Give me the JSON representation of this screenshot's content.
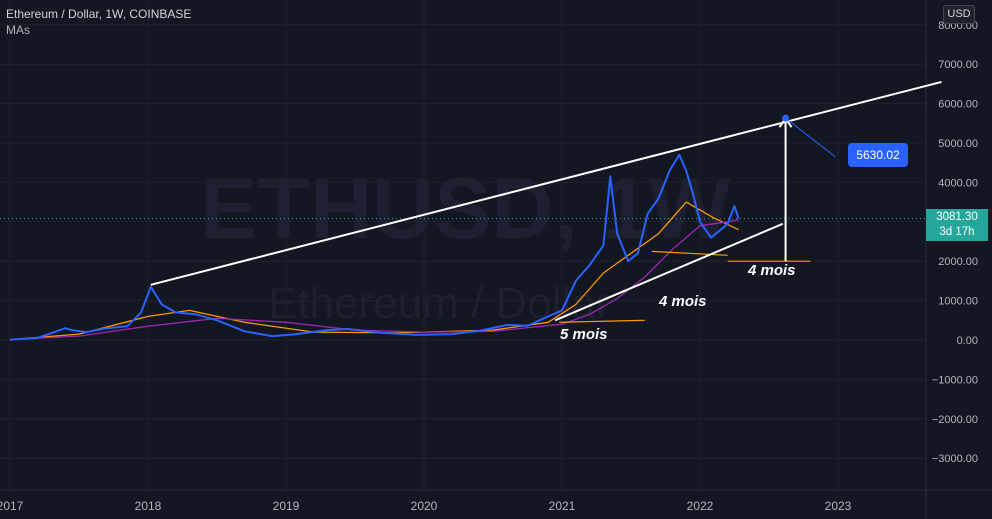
{
  "header": {
    "title": "Ethereum / Dollar, 1W, COINBASE",
    "indicator": "MAs"
  },
  "currency_badge": "USD",
  "watermark": {
    "symbol": "ETHUSD, 1W",
    "name": "Ethereum / Dollar"
  },
  "last_price": {
    "value": "3081.30",
    "countdown": "3d 17h",
    "color": "#26a69a"
  },
  "callout": {
    "label": "5630.02",
    "color": "#2962ff"
  },
  "annotations": [
    {
      "text": "5 mois"
    },
    {
      "text": "4 mois"
    },
    {
      "text": "4 mois"
    }
  ],
  "chart_data": {
    "type": "line",
    "ylim": [
      -3500,
      8200
    ],
    "xlim": [
      2017.0,
      2023.75
    ],
    "y_ticks": [
      "8000.00",
      "7000.00",
      "6000.00",
      "5000.00",
      "4000.00",
      "3000.00",
      "2000.00",
      "1000.00",
      "0.00",
      "−1000.00",
      "−2000.00",
      "−3000.00"
    ],
    "x_ticks": [
      "2017",
      "2018",
      "2019",
      "2020",
      "2021",
      "2022",
      "2023"
    ],
    "grid": true,
    "series": [
      {
        "color": "#2962ff",
        "x": [
          2017.0,
          2017.2,
          2017.4,
          2017.45,
          2017.55,
          2017.7,
          2017.85,
          2017.95,
          2018.02,
          2018.1,
          2018.2,
          2018.35,
          2018.5,
          2018.7,
          2018.9,
          2019.05,
          2019.3,
          2019.45,
          2019.7,
          2019.95,
          2020.2,
          2020.4,
          2020.6,
          2020.75,
          2020.9,
          2021.0,
          2021.1,
          2021.2,
          2021.3,
          2021.35,
          2021.4,
          2021.48,
          2021.55,
          2021.62,
          2021.7,
          2021.78,
          2021.85,
          2021.9,
          2021.95,
          2022.0,
          2022.08,
          2022.15,
          2022.2,
          2022.25,
          2022.28
        ],
        "y": [
          10,
          50,
          300,
          250,
          200,
          300,
          350,
          700,
          1350,
          900,
          700,
          650,
          500,
          220,
          100,
          140,
          250,
          280,
          180,
          130,
          150,
          230,
          380,
          360,
          600,
          750,
          1500,
          1900,
          2400,
          4150,
          2700,
          2000,
          2200,
          3200,
          3600,
          4300,
          4700,
          4300,
          3700,
          3000,
          2600,
          2800,
          2950,
          3400,
          3081.3
        ]
      },
      {
        "color": "#ff9800",
        "x": [
          2017.0,
          2017.5,
          2018.0,
          2018.3,
          2018.7,
          2019.2,
          2019.8,
          2020.5,
          2020.9,
          2021.1,
          2021.3,
          2021.5,
          2021.7,
          2021.9,
          2022.1,
          2022.28
        ],
        "y": [
          10,
          150,
          600,
          750,
          450,
          200,
          180,
          250,
          450,
          900,
          1700,
          2200,
          2700,
          3500,
          3100,
          2800
        ]
      },
      {
        "color": "#9c27b0",
        "x": [
          2017.0,
          2017.5,
          2018.0,
          2018.5,
          2019.0,
          2019.5,
          2020.0,
          2020.5,
          2021.0,
          2021.2,
          2021.4,
          2021.6,
          2021.8,
          2022.0,
          2022.2,
          2022.28
        ],
        "y": [
          10,
          100,
          350,
          550,
          450,
          250,
          200,
          220,
          400,
          650,
          1050,
          1600,
          2300,
          2900,
          3000,
          3050
        ]
      }
    ],
    "trendlines": [
      {
        "color": "#ffffff",
        "x": [
          2018.02,
          2023.75
        ],
        "y": [
          1400,
          6550
        ]
      },
      {
        "color": "#ffffff",
        "x": [
          2020.95,
          2022.6
        ],
        "y": [
          500,
          2950
        ]
      },
      {
        "color": "#ffffff",
        "x": [
          2022.62,
          2022.62
        ],
        "y": [
          2000,
          5600
        ]
      },
      {
        "color": "#2962ff",
        "x": [
          2022.62,
          2022.98
        ],
        "y": [
          5630,
          4650
        ]
      }
    ],
    "target": {
      "x": 2022.62,
      "y": 5630.02
    },
    "brackets": [
      {
        "color": "#ff9800",
        "x": [
          2020.98,
          2021.6
        ],
        "y": [
          450,
          500
        ]
      },
      {
        "color": "#ff9800",
        "x": [
          2021.65,
          2022.2
        ],
        "y": [
          2250,
          2150
        ]
      },
      {
        "color": "#ff9800",
        "x": [
          2022.2,
          2022.8
        ],
        "y": [
          2000,
          2000
        ]
      }
    ]
  }
}
